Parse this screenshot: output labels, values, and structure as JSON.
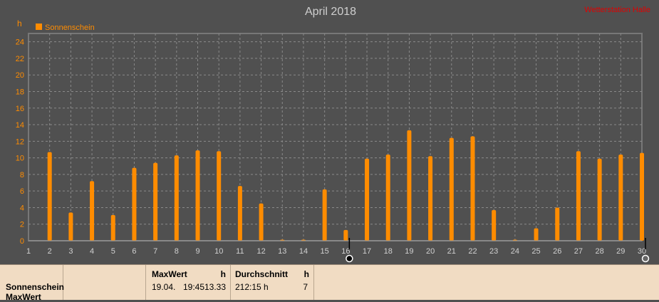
{
  "chart_data": {
    "type": "bar",
    "title": "April 2018",
    "ylabel": "h",
    "ylim": [
      0,
      25
    ],
    "yticks": [
      0,
      2,
      4,
      6,
      8,
      10,
      12,
      14,
      16,
      18,
      20,
      22,
      24
    ],
    "categories": [
      "1",
      "2",
      "3",
      "4",
      "5",
      "6",
      "7",
      "8",
      "9",
      "10",
      "11",
      "12",
      "13",
      "14",
      "15",
      "16",
      "17",
      "18",
      "19",
      "20",
      "21",
      "22",
      "23",
      "24",
      "25",
      "26",
      "27",
      "28",
      "29",
      "30"
    ],
    "series": [
      {
        "name": "Sonnenschein",
        "color": "#ff8c00",
        "values": [
          0,
          10.7,
          3.4,
          7.2,
          3.1,
          8.8,
          9.4,
          10.3,
          10.9,
          10.8,
          6.6,
          4.5,
          0.1,
          0.05,
          6.2,
          1.3,
          9.9,
          10.4,
          13.33,
          10.2,
          12.4,
          12.6,
          3.7,
          0.05,
          1.5,
          4.0,
          10.8,
          9.9,
          10.4,
          10.6
        ]
      }
    ],
    "grid": true,
    "legend": "top-left",
    "top_right_label": "Wetterstation Halle",
    "axis_color": "#ff8c00",
    "background": "#505050"
  },
  "panel": {
    "row_label_1": "Sonnenschein",
    "row_label_2": "MaxWert",
    "max_header": "MaxWert",
    "max_unit": "h",
    "max_date": "19.04.",
    "max_time": "19:45",
    "max_value": "13.33",
    "avg_header": "Durchschnitt",
    "avg_unit": "h",
    "avg_value": "212:15 h",
    "avg_count": "7"
  }
}
